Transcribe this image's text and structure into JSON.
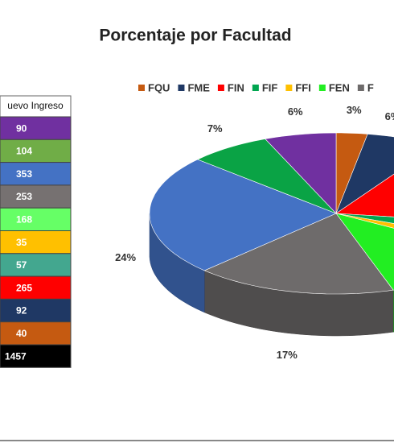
{
  "table": {
    "header": "uevo Ingreso",
    "rows": [
      {
        "value": 90,
        "color": "#7030a0"
      },
      {
        "value": 104,
        "color": "#70ad47"
      },
      {
        "value": 353,
        "color": "#4472c4"
      },
      {
        "value": 253,
        "color": "#767171"
      },
      {
        "value": 168,
        "color": "#66ff66"
      },
      {
        "value": 35,
        "color": "#ffc000"
      },
      {
        "value": 57,
        "color": "#43a78f"
      },
      {
        "value": 265,
        "color": "#ff0000"
      },
      {
        "value": 92,
        "color": "#1f3864"
      },
      {
        "value": 40,
        "color": "#c55a11"
      }
    ],
    "total": {
      "value": 1457,
      "color": "#000000"
    }
  },
  "chart_data": {
    "type": "pie",
    "title": "Porcentaje por Facultad",
    "categories": [
      "FQU",
      "FME",
      "FIN",
      "FIF",
      "FFI",
      "FEN",
      "F",
      null,
      null,
      null
    ],
    "values": [
      2.7,
      6.3,
      18.2,
      3.9,
      2.4,
      11.5,
      17.4,
      24.2,
      7.1,
      6.2
    ],
    "value_labels": [
      "3%",
      "6%",
      null,
      null,
      null,
      null,
      "17%",
      "24%",
      "7%",
      "6%"
    ],
    "colors": [
      "#c55a11",
      "#1f3864",
      "#ff0000",
      "#00a650",
      "#ffc000",
      "#22ee22",
      "#6e6b6b",
      "#4472c4",
      "#0aa345",
      "#7030a0"
    ]
  }
}
